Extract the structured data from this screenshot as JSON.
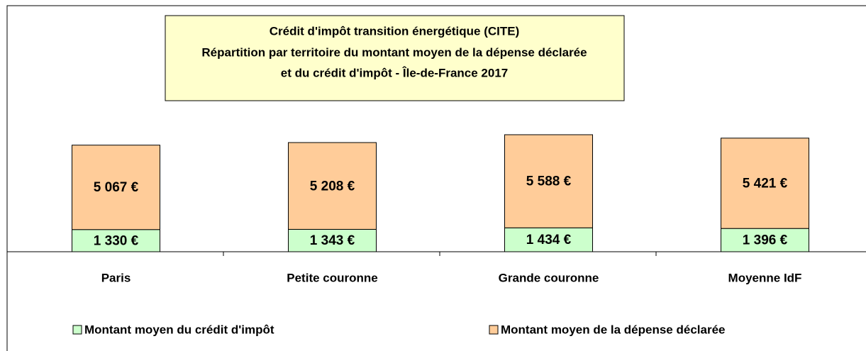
{
  "chart_data": {
    "type": "stacked_bar",
    "title": [
      "Crédit d'impôt transition énergétique (CITE)",
      "Répartition par territoire du montant moyen de la dépense déclarée",
      "et du crédit d'impôt - Île-de-France 2017"
    ],
    "categories": [
      "Paris",
      "Petite couronne",
      "Grande couronne",
      "Moyenne IdF"
    ],
    "series": [
      {
        "name": "Montant moyen du crédit d'impôt",
        "color": "#ccffcc",
        "values": [
          1330,
          1343,
          1434,
          1396
        ],
        "value_labels": [
          "1 330 €",
          "1 343 €",
          "1 434 €",
          "1 396 €"
        ]
      },
      {
        "name": "Montant moyen de la dépense déclarée",
        "color": "#ffcc99",
        "values": [
          5067,
          5208,
          5588,
          5421
        ],
        "value_labels": [
          "5 067 €",
          "5 208 €",
          "5 588 €",
          "5 421 €"
        ]
      }
    ]
  }
}
